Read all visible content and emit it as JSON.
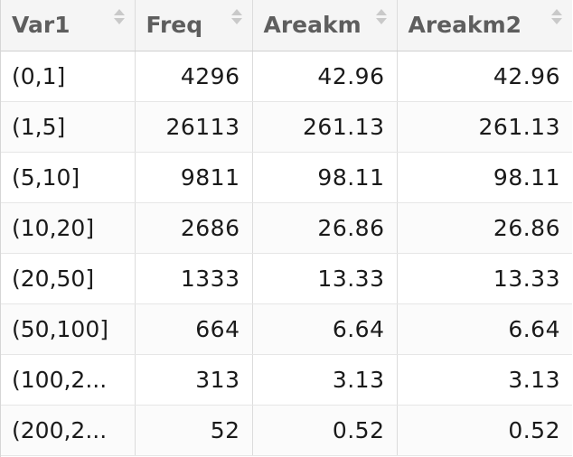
{
  "table": {
    "columns": [
      {
        "label": "Var1"
      },
      {
        "label": "Freq"
      },
      {
        "label": "Areakm"
      },
      {
        "label": "Areakm2"
      }
    ],
    "rows": [
      {
        "var1": "(0,1]",
        "freq": "4296",
        "areakm": "42.96",
        "areakm2": "42.96"
      },
      {
        "var1": "(1,5]",
        "freq": "26113",
        "areakm": "261.13",
        "areakm2": "261.13"
      },
      {
        "var1": "(5,10]",
        "freq": "9811",
        "areakm": "98.11",
        "areakm2": "98.11"
      },
      {
        "var1": "(10,20]",
        "freq": "2686",
        "areakm": "26.86",
        "areakm2": "26.86"
      },
      {
        "var1": "(20,50]",
        "freq": "1333",
        "areakm": "13.33",
        "areakm2": "13.33"
      },
      {
        "var1": "(50,100]",
        "freq": "664",
        "areakm": "6.64",
        "areakm2": "6.64"
      },
      {
        "var1": "(100,2...",
        "freq": "313",
        "areakm": "3.13",
        "areakm2": "3.13"
      },
      {
        "var1": "(200,2...",
        "freq": "52",
        "areakm": "0.52",
        "areakm2": "0.52"
      }
    ]
  },
  "icons": {
    "sort": "sort-arrows-icon"
  },
  "colors": {
    "header_bg": "#f5f5f5",
    "header_text": "#5e5e5e",
    "cell_text": "#1a1a1a",
    "border": "#dcdcdc",
    "sort_icon": "#c9c9c9"
  }
}
